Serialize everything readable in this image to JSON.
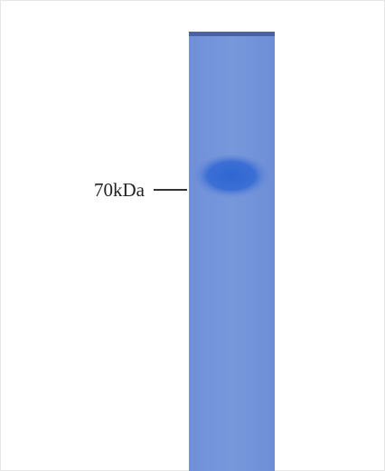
{
  "marker": {
    "label": "70kDa"
  }
}
